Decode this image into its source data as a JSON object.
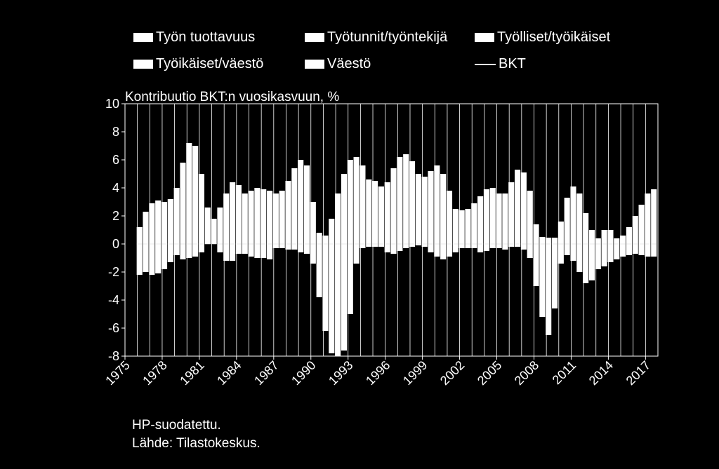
{
  "legend": [
    {
      "label": "Työn tuottavuus",
      "type": "bar"
    },
    {
      "label": "Työtunnit/työntekijä",
      "type": "bar"
    },
    {
      "label": "Työlliset/työikäiset",
      "type": "bar"
    },
    {
      "label": "Työikäiset/väestö",
      "type": "bar"
    },
    {
      "label": "Väestö",
      "type": "bar"
    },
    {
      "label": "BKT",
      "type": "line"
    }
  ],
  "notes": {
    "filter": "HP-suodatettu.",
    "source": "Lähde: Tilastokeskus."
  },
  "colors": {
    "background": "#000000",
    "foreground": "#ffffff"
  },
  "chart_data": {
    "type": "bar",
    "stacked": true,
    "ylabel": "Kontribuutio BKT:n vuosikasvuun, %",
    "ylim": [
      -8,
      10
    ],
    "yticks": [
      -8,
      -6,
      -4,
      -2,
      0,
      2,
      4,
      6,
      8,
      10
    ],
    "xlim": [
      1975,
      2018
    ],
    "xticks": [
      1975,
      1978,
      1981,
      1984,
      1987,
      1990,
      1993,
      1996,
      1999,
      2002,
      2005,
      2008,
      2011,
      2014,
      2017
    ],
    "grid": "vertical",
    "legend_position": "top",
    "series_names": [
      "Työn tuottavuus",
      "Työtunnit/työntekijä",
      "Työlliset/työikäiset",
      "Työikäiset/väestö",
      "Väestö",
      "BKT"
    ],
    "upper_envelope": [
      [
        1976.0,
        1.2
      ],
      [
        1976.5,
        2.3
      ],
      [
        1977.0,
        2.9
      ],
      [
        1977.5,
        3.1
      ],
      [
        1978.0,
        3.0
      ],
      [
        1978.5,
        3.2
      ],
      [
        1979.0,
        4.0
      ],
      [
        1979.5,
        5.8
      ],
      [
        1980.0,
        7.2
      ],
      [
        1980.5,
        7.0
      ],
      [
        1981.0,
        5.0
      ],
      [
        1981.5,
        2.6
      ],
      [
        1982.0,
        1.8
      ],
      [
        1982.5,
        2.6
      ],
      [
        1983.0,
        3.6
      ],
      [
        1983.5,
        4.4
      ],
      [
        1984.0,
        4.2
      ],
      [
        1984.5,
        3.6
      ],
      [
        1985.0,
        3.8
      ],
      [
        1985.5,
        4.0
      ],
      [
        1986.0,
        3.9
      ],
      [
        1986.5,
        3.8
      ],
      [
        1987.0,
        3.6
      ],
      [
        1987.5,
        3.8
      ],
      [
        1988.0,
        4.5
      ],
      [
        1988.5,
        5.4
      ],
      [
        1989.0,
        6.0
      ],
      [
        1989.5,
        5.6
      ],
      [
        1990.0,
        3.0
      ],
      [
        1990.5,
        0.8
      ],
      [
        1991.0,
        0.6
      ],
      [
        1991.5,
        1.8
      ],
      [
        1992.0,
        3.6
      ],
      [
        1992.5,
        5.0
      ],
      [
        1993.0,
        6.0
      ],
      [
        1993.5,
        6.2
      ],
      [
        1994.0,
        5.6
      ],
      [
        1994.5,
        4.6
      ],
      [
        1995.0,
        4.5
      ],
      [
        1995.5,
        4.1
      ],
      [
        1996.0,
        4.4
      ],
      [
        1996.5,
        5.4
      ],
      [
        1997.0,
        6.2
      ],
      [
        1997.5,
        6.4
      ],
      [
        1998.0,
        5.9
      ],
      [
        1998.5,
        5.0
      ],
      [
        1999.0,
        4.8
      ],
      [
        1999.5,
        5.2
      ],
      [
        2000.0,
        5.6
      ],
      [
        2000.5,
        5.0
      ],
      [
        2001.0,
        3.8
      ],
      [
        2001.5,
        2.5
      ],
      [
        2002.0,
        2.4
      ],
      [
        2002.5,
        2.5
      ],
      [
        2003.0,
        2.9
      ],
      [
        2003.5,
        3.4
      ],
      [
        2004.0,
        3.9
      ],
      [
        2004.5,
        4.0
      ],
      [
        2005.0,
        3.6
      ],
      [
        2005.5,
        3.6
      ],
      [
        2006.0,
        4.4
      ],
      [
        2006.5,
        5.3
      ],
      [
        2007.0,
        5.1
      ],
      [
        2007.5,
        3.8
      ],
      [
        2008.0,
        1.4
      ],
      [
        2008.5,
        0.5
      ],
      [
        2009.0,
        0.45
      ],
      [
        2009.5,
        0.45
      ],
      [
        2010.0,
        1.6
      ],
      [
        2010.5,
        3.3
      ],
      [
        2011.0,
        4.1
      ],
      [
        2011.5,
        3.6
      ],
      [
        2012.0,
        2.2
      ],
      [
        2012.5,
        1.0
      ],
      [
        2013.0,
        0.4
      ],
      [
        2013.5,
        1.0
      ],
      [
        2014.0,
        1.0
      ],
      [
        2014.5,
        0.4
      ],
      [
        2015.0,
        0.6
      ],
      [
        2015.5,
        1.2
      ],
      [
        2016.0,
        2.0
      ],
      [
        2016.5,
        2.8
      ],
      [
        2017.0,
        3.6
      ],
      [
        2017.5,
        3.9
      ]
    ],
    "lower_envelope": [
      [
        1976.0,
        -2.2
      ],
      [
        1976.5,
        -2.0
      ],
      [
        1977.0,
        -2.2
      ],
      [
        1977.5,
        -2.1
      ],
      [
        1978.0,
        -1.8
      ],
      [
        1978.5,
        -1.3
      ],
      [
        1979.0,
        -0.8
      ],
      [
        1979.5,
        -1.1
      ],
      [
        1980.0,
        -1.0
      ],
      [
        1980.5,
        -0.9
      ],
      [
        1981.0,
        -0.6
      ],
      [
        1981.5,
        0.0
      ],
      [
        1982.0,
        0.0
      ],
      [
        1982.5,
        -0.6
      ],
      [
        1983.0,
        -1.2
      ],
      [
        1983.5,
        -1.2
      ],
      [
        1984.0,
        -0.7
      ],
      [
        1984.5,
        -0.7
      ],
      [
        1985.0,
        -0.9
      ],
      [
        1985.5,
        -1.0
      ],
      [
        1986.0,
        -1.0
      ],
      [
        1986.5,
        -1.1
      ],
      [
        1987.0,
        -0.3
      ],
      [
        1987.5,
        -0.3
      ],
      [
        1988.0,
        -0.4
      ],
      [
        1988.5,
        -0.4
      ],
      [
        1989.0,
        -0.6
      ],
      [
        1989.5,
        -0.7
      ],
      [
        1990.0,
        -1.4
      ],
      [
        1990.5,
        -3.8
      ],
      [
        1991.0,
        -6.2
      ],
      [
        1991.5,
        -7.8
      ],
      [
        1992.0,
        -8.0
      ],
      [
        1992.5,
        -7.6
      ],
      [
        1993.0,
        -5.0
      ],
      [
        1993.5,
        -1.4
      ],
      [
        1994.0,
        -0.3
      ],
      [
        1994.5,
        -0.2
      ],
      [
        1995.0,
        -0.2
      ],
      [
        1995.5,
        -0.2
      ],
      [
        1996.0,
        -0.6
      ],
      [
        1996.5,
        -0.7
      ],
      [
        1997.0,
        -0.5
      ],
      [
        1997.5,
        -0.3
      ],
      [
        1998.0,
        -0.2
      ],
      [
        1998.5,
        -0.1
      ],
      [
        1999.0,
        -0.2
      ],
      [
        1999.5,
        -0.6
      ],
      [
        2000.0,
        -0.9
      ],
      [
        2000.5,
        -1.1
      ],
      [
        2001.0,
        -0.9
      ],
      [
        2001.5,
        -0.6
      ],
      [
        2002.0,
        -0.3
      ],
      [
        2002.5,
        -0.3
      ],
      [
        2003.0,
        -0.3
      ],
      [
        2003.5,
        -0.6
      ],
      [
        2004.0,
        -0.5
      ],
      [
        2004.5,
        -0.3
      ],
      [
        2005.0,
        -0.3
      ],
      [
        2005.5,
        -0.4
      ],
      [
        2006.0,
        -0.2
      ],
      [
        2006.5,
        -0.2
      ],
      [
        2007.0,
        -0.4
      ],
      [
        2007.5,
        -1.0
      ],
      [
        2008.0,
        -3.0
      ],
      [
        2008.5,
        -5.2
      ],
      [
        2009.0,
        -6.5
      ],
      [
        2009.5,
        -4.6
      ],
      [
        2010.0,
        -1.4
      ],
      [
        2010.5,
        -0.8
      ],
      [
        2011.0,
        -1.2
      ],
      [
        2011.5,
        -2.0
      ],
      [
        2012.0,
        -2.8
      ],
      [
        2012.5,
        -2.6
      ],
      [
        2013.0,
        -1.8
      ],
      [
        2013.5,
        -1.6
      ],
      [
        2014.0,
        -1.3
      ],
      [
        2014.5,
        -1.1
      ],
      [
        2015.0,
        -0.9
      ],
      [
        2015.5,
        -0.8
      ],
      [
        2016.0,
        -0.7
      ],
      [
        2016.5,
        -0.8
      ],
      [
        2017.0,
        -0.9
      ],
      [
        2017.5,
        -0.9
      ]
    ]
  }
}
